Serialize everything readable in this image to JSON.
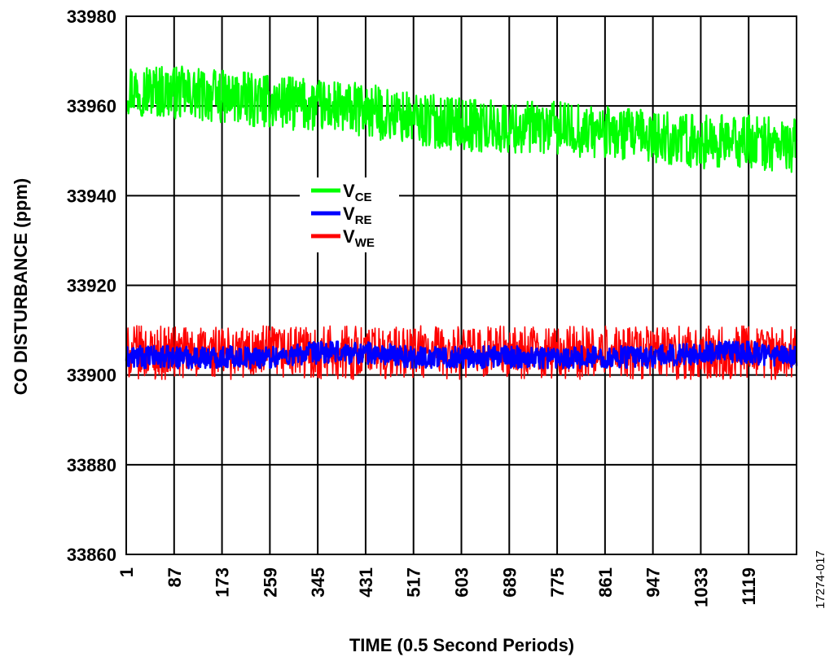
{
  "chart_data": {
    "type": "line",
    "xlabel": "TIME (0.5 Second Periods)",
    "ylabel": "CO DISTURBANCE (ppm)",
    "figure_id": "17274-017",
    "x_tick_labels": [
      "1",
      "87",
      "173",
      "259",
      "345",
      "431",
      "517",
      "603",
      "689",
      "775",
      "861",
      "947",
      "1033",
      "1119"
    ],
    "xlim": [
      1,
      1205
    ],
    "ylim": [
      33860,
      33980
    ],
    "y_ticks": [
      33860,
      33880,
      33900,
      33920,
      33940,
      33960,
      33980
    ],
    "grid": true,
    "legend_position": "center-left, above the lower traces",
    "series": [
      {
        "legend_main": "V",
        "legend_sub": "CE",
        "color": "#00ff00",
        "x": [
          1,
          87,
          173,
          259,
          345,
          431,
          517,
          603,
          689,
          775,
          861,
          947,
          1033,
          1119,
          1205
        ],
        "y": [
          33964,
          33963,
          33962,
          33961,
          33960,
          33959,
          33957,
          33956,
          33955,
          33955,
          33954,
          33953,
          33952,
          33952,
          33951
        ],
        "noise_band": 6
      },
      {
        "legend_main": "V",
        "legend_sub": "RE",
        "color": "#0000ff",
        "x": [
          1,
          87,
          173,
          259,
          345,
          431,
          517,
          603,
          689,
          775,
          861,
          947,
          1033,
          1119,
          1205
        ],
        "y": [
          33904,
          33904,
          33904,
          33904,
          33905,
          33905,
          33904,
          33904,
          33904,
          33904,
          33904,
          33904,
          33905,
          33905,
          33904
        ],
        "noise_band": 2.5
      },
      {
        "legend_main": "V",
        "legend_sub": "WE",
        "color": "#ff0000",
        "x": [
          1,
          87,
          173,
          259,
          345,
          431,
          517,
          603,
          689,
          775,
          861,
          947,
          1033,
          1119,
          1205
        ],
        "y": [
          33905,
          33905,
          33905,
          33905,
          33905,
          33905,
          33905,
          33905,
          33905,
          33905,
          33905,
          33905,
          33905,
          33905,
          33905
        ],
        "noise_band": 6
      }
    ]
  }
}
